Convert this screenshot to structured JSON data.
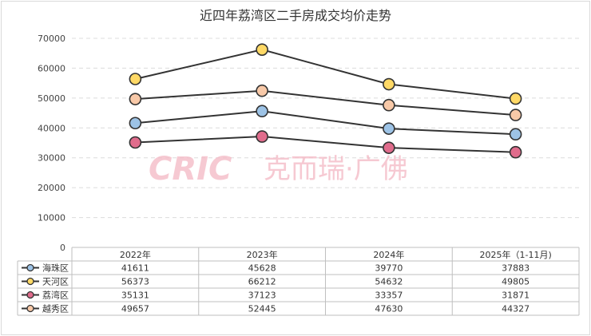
{
  "chart_data": {
    "type": "line",
    "title": "近四年荔湾区二手房成交均价走势",
    "categories": [
      "2022年",
      "2023年",
      "2024年",
      "2025年（1-11月)"
    ],
    "ylim": [
      0,
      70000
    ],
    "yticks": [
      "0",
      "10000",
      "20000",
      "30000",
      "40000",
      "50000",
      "60000",
      "70000"
    ],
    "grid": true,
    "legend": "table-bottom",
    "series": [
      {
        "name": "海珠区",
        "values": [
          41611,
          45628,
          39770,
          37883
        ],
        "color": "#9dc3e6"
      },
      {
        "name": "天河区",
        "values": [
          56373,
          66212,
          54632,
          49805
        ],
        "color": "#ffd966"
      },
      {
        "name": "荔湾区",
        "values": [
          35131,
          37123,
          33357,
          31871
        ],
        "color": "#e06c8c"
      },
      {
        "name": "越秀区",
        "values": [
          49657,
          52445,
          47630,
          44327
        ],
        "color": "#f8c9a8"
      }
    ],
    "line_color": "#333333"
  },
  "watermark": {
    "logo": "CRIC",
    "text": "克而瑞·广佛"
  }
}
